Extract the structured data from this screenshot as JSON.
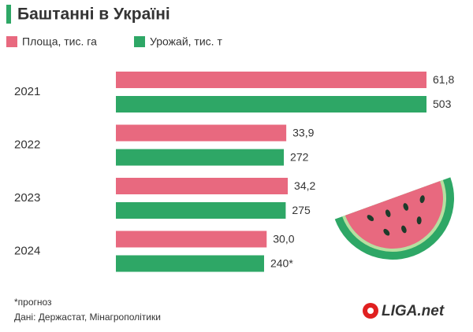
{
  "chart_data": {
    "type": "bar",
    "orientation": "horizontal",
    "title": "Баштанні в Україні",
    "categories": [
      "2021",
      "2022",
      "2023",
      "2024"
    ],
    "series": [
      {
        "name": "Площа, тис. га",
        "color": "#e8697f",
        "values": [
          61.8,
          33.9,
          34.2,
          30.0
        ],
        "value_labels": [
          "61,8",
          "33,9",
          "34,2",
          "30,0"
        ]
      },
      {
        "name": "Урожай, тис. т",
        "color": "#2ea766",
        "values": [
          503,
          272,
          275,
          240
        ],
        "value_labels": [
          "503",
          "272",
          "275",
          "240*"
        ]
      }
    ],
    "footnote": "*прогноз",
    "source": "Дані: Держастат, Мінагрополітики",
    "logo": "LIGA.net"
  }
}
